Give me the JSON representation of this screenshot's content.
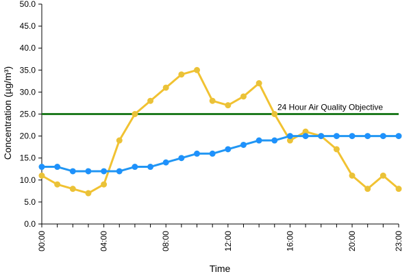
{
  "chart_data": {
    "type": "line",
    "title": "",
    "xlabel": "Time",
    "ylabel": "Concentration (µg/m³)",
    "ylim": [
      0,
      50
    ],
    "y_ticks": [
      "0.0",
      "5.0",
      "10.0",
      "15.0",
      "20.0",
      "25.0",
      "30.0",
      "35.0",
      "40.0",
      "45.0",
      "50.0"
    ],
    "x_ticks": [
      "00:00",
      "04:00",
      "08:00",
      "12:00",
      "16:00",
      "20:00",
      "23:00"
    ],
    "x_tick_hours": [
      0,
      4,
      8,
      12,
      16,
      20,
      23
    ],
    "x": [
      0,
      1,
      2,
      3,
      4,
      5,
      6,
      7,
      8,
      9,
      10,
      11,
      12,
      13,
      14,
      15,
      16,
      17,
      18,
      19,
      20,
      21,
      22,
      23
    ],
    "grid": false,
    "legend": "none",
    "series": [
      {
        "color": "#f1c232",
        "marker_color": "#e8c23a",
        "values": [
          11,
          9,
          8,
          7,
          9,
          19,
          25,
          28,
          31,
          34,
          35,
          28,
          27,
          29,
          32,
          25,
          19,
          21,
          20,
          17,
          11,
          8,
          11,
          8
        ]
      },
      {
        "color": "#2196f3",
        "marker_color": "#1e90ff",
        "values": [
          13,
          13,
          12,
          12,
          12,
          12,
          13,
          13,
          14,
          15,
          16,
          16,
          17,
          18,
          19,
          19,
          20,
          20,
          20,
          20,
          20,
          20,
          20,
          20
        ]
      }
    ],
    "reference_line": {
      "value": 25,
      "label": "24 Hour Air Quality Objective",
      "color": "#1f7a1f"
    }
  }
}
